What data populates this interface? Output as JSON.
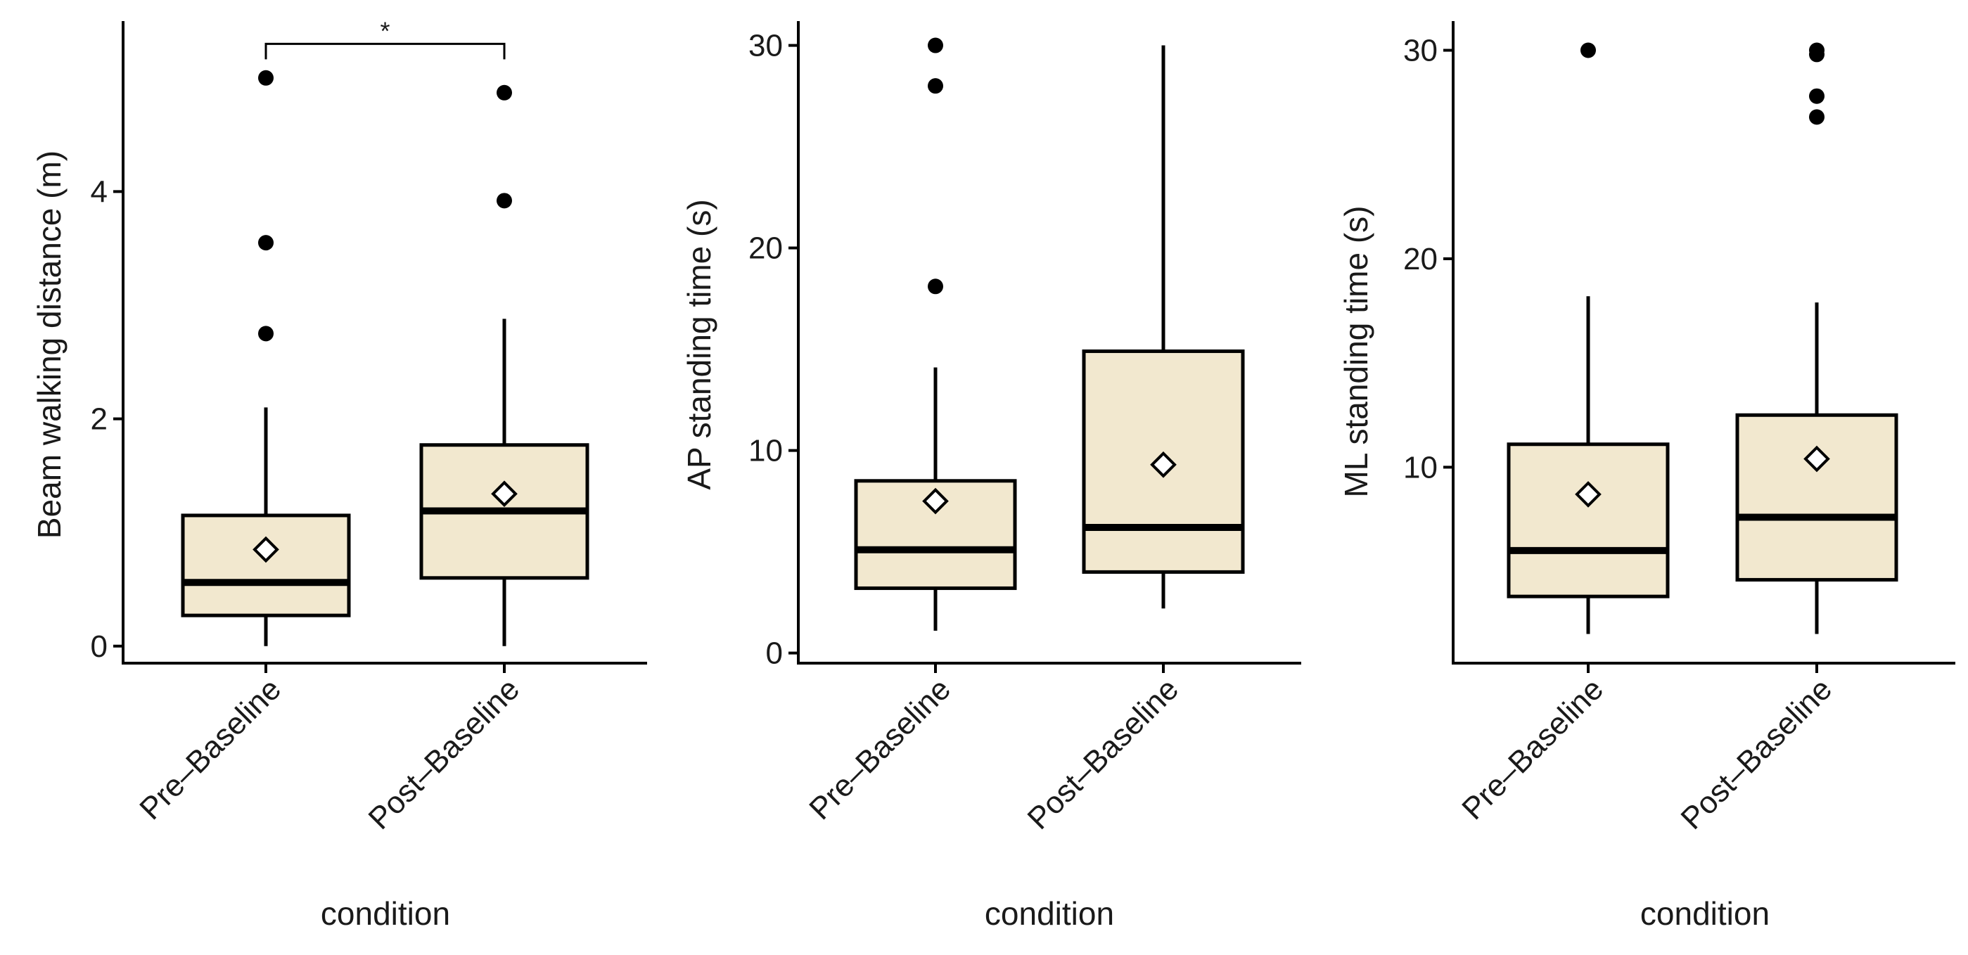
{
  "colors": {
    "box_fill": "#F2E8CF",
    "ink": "#000000"
  },
  "chart_data": [
    {
      "type": "box",
      "title": "",
      "xlabel": "condition",
      "ylabel": "Beam walking distance (m)",
      "ylim": [
        -0.15,
        5.5
      ],
      "yticks": [
        0,
        2,
        4
      ],
      "tick_labels": [
        "0",
        "2",
        "4"
      ],
      "categories": [
        "Pre–Baseline",
        "Post–Baseline"
      ],
      "series": [
        {
          "name": "Pre–Baseline",
          "whisker_low": 0,
          "q1": 0.27,
          "median": 0.56,
          "q3": 1.15,
          "whisker_high": 2.1,
          "mean": 0.85,
          "outliers": [
            2.75,
            3.55,
            5.0
          ]
        },
        {
          "name": "Post–Baseline",
          "whisker_low": 0,
          "q1": 0.6,
          "median": 1.19,
          "q3": 1.77,
          "whisker_high": 2.88,
          "mean": 1.34,
          "outliers": [
            3.92,
            4.87
          ]
        }
      ],
      "significance": {
        "label": "*",
        "from": 0,
        "to": 1,
        "y": 5.3
      }
    },
    {
      "type": "box",
      "title": "",
      "xlabel": "condition",
      "ylabel": "AP standing time (s)",
      "ylim": [
        -0.5,
        31.2
      ],
      "yticks": [
        0,
        10,
        20,
        30
      ],
      "tick_labels": [
        "0",
        "10",
        "20",
        "30"
      ],
      "categories": [
        "Pre–Baseline",
        "Post–Baseline"
      ],
      "series": [
        {
          "name": "Pre–Baseline",
          "whisker_low": 1.1,
          "q1": 3.2,
          "median": 5.1,
          "q3": 8.5,
          "whisker_high": 14.1,
          "mean": 7.5,
          "outliers": [
            18.1,
            28.0,
            30.0
          ]
        },
        {
          "name": "Post–Baseline",
          "whisker_low": 2.2,
          "q1": 4.0,
          "median": 6.2,
          "q3": 14.9,
          "whisker_high": 30.0,
          "mean": 9.3,
          "outliers": []
        }
      ]
    },
    {
      "type": "box",
      "title": "",
      "xlabel": "condition",
      "ylabel": "ML standing time (s)",
      "ylim": [
        0.6,
        31.4
      ],
      "yticks": [
        10,
        20,
        30
      ],
      "tick_labels": [
        "10",
        "20",
        "30"
      ],
      "categories": [
        "Pre–Baseline",
        "Post–Baseline"
      ],
      "series": [
        {
          "name": "Pre–Baseline",
          "whisker_low": 2.0,
          "q1": 3.8,
          "median": 6.0,
          "q3": 11.1,
          "whisker_high": 18.2,
          "mean": 8.7,
          "outliers": [
            30.0
          ]
        },
        {
          "name": "Post–Baseline",
          "whisker_low": 2.0,
          "q1": 4.6,
          "median": 7.6,
          "q3": 12.5,
          "whisker_high": 17.9,
          "mean": 10.4,
          "outliers": [
            26.8,
            27.8,
            29.8,
            30.0
          ]
        }
      ]
    }
  ]
}
